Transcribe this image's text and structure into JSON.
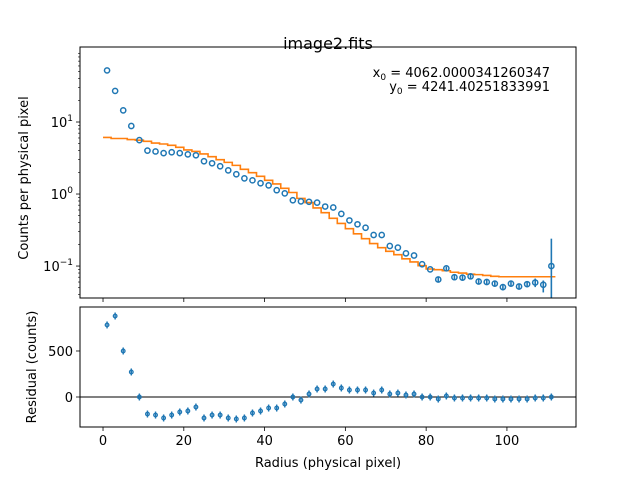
{
  "chart_data": [
    {
      "type": "scatter",
      "title": "image2.fits",
      "xlabel": "",
      "ylabel": "Counts per physical pixel",
      "yscale": "log",
      "xlim": [
        -5.7,
        117.1
      ],
      "ylim": [
        0.036,
        110
      ],
      "xticks": [
        0,
        20,
        40,
        60,
        80,
        100
      ],
      "yticks": [
        {
          "base": "10",
          "exp": "1",
          "value": 10
        },
        {
          "base": "10",
          "exp": "0",
          "value": 1
        },
        {
          "base": "10",
          "exp": "−1",
          "value": 0.1
        }
      ],
      "annotations": [
        {
          "sym": "x",
          "sub": "0",
          "rest": " = 4062.0000341260347"
        },
        {
          "sym": "y",
          "sub": "0",
          "rest": " = 4241.40251833991"
        }
      ],
      "series": [
        {
          "kind": "data-points",
          "color": "#1f77b4",
          "x": [
            1,
            3,
            5,
            7,
            9,
            11,
            13,
            15,
            17,
            19,
            21,
            23,
            25,
            27,
            29,
            31,
            33,
            35,
            37,
            39,
            41,
            43,
            45,
            47,
            49,
            51,
            53,
            55,
            57,
            59,
            61,
            63,
            65,
            67,
            69,
            71,
            73,
            75,
            77,
            79,
            81,
            83,
            85,
            87,
            89,
            91,
            93,
            95,
            97,
            99,
            101,
            103,
            105,
            107,
            109,
            111
          ],
          "y": [
            52,
            27,
            14.5,
            8.8,
            5.6,
            4.0,
            3.9,
            3.7,
            3.8,
            3.7,
            3.55,
            3.45,
            2.85,
            2.67,
            2.43,
            2.13,
            1.88,
            1.65,
            1.55,
            1.41,
            1.32,
            1.13,
            1.02,
            0.82,
            0.79,
            0.78,
            0.76,
            0.67,
            0.65,
            0.53,
            0.43,
            0.38,
            0.34,
            0.27,
            0.27,
            0.19,
            0.18,
            0.15,
            0.14,
            0.106,
            0.09,
            0.065,
            0.093,
            0.07,
            0.069,
            0.072,
            0.061,
            0.06,
            0.057,
            0.051,
            0.057,
            0.052,
            0.056,
            0.059,
            0.055,
            0.1
          ],
          "yerr_low": [
            0,
            0,
            0,
            0,
            0,
            0,
            0,
            0,
            0,
            0,
            0,
            0,
            0,
            0,
            0,
            0,
            0,
            0,
            0,
            0,
            0,
            0,
            0,
            0,
            0,
            0,
            0,
            0,
            0,
            0,
            0,
            0,
            0,
            0,
            0,
            0,
            0,
            0,
            0,
            0,
            0,
            0.005,
            0.005,
            0.005,
            0.005,
            0.005,
            0.005,
            0.005,
            0.005,
            0.005,
            0.005,
            0.005,
            0.005,
            0.008,
            0.012,
            0.1
          ],
          "yerr_high": [
            0,
            0,
            0,
            0,
            0,
            0,
            0,
            0,
            0,
            0,
            0,
            0,
            0,
            0,
            0,
            0,
            0,
            0,
            0,
            0,
            0,
            0,
            0,
            0,
            0,
            0,
            0,
            0,
            0,
            0,
            0,
            0,
            0,
            0,
            0,
            0,
            0,
            0,
            0,
            0,
            0,
            0.005,
            0.005,
            0.005,
            0.005,
            0.005,
            0.005,
            0.005,
            0.005,
            0.005,
            0.005,
            0.005,
            0.005,
            0.008,
            0.008,
            0.14
          ]
        },
        {
          "kind": "model-step",
          "color": "#ff7f0e",
          "x": [
            1,
            3,
            5,
            7,
            9,
            11,
            13,
            15,
            17,
            19,
            21,
            23,
            25,
            27,
            29,
            31,
            33,
            35,
            37,
            39,
            41,
            43,
            45,
            47,
            49,
            51,
            53,
            55,
            57,
            59,
            61,
            63,
            65,
            67,
            69,
            71,
            73,
            75,
            77,
            79,
            81,
            83,
            85,
            87,
            89,
            91,
            93,
            95,
            97,
            99,
            101,
            103,
            105,
            107,
            109,
            111
          ],
          "y": [
            6.1,
            5.9,
            5.9,
            5.7,
            5.6,
            5.4,
            5.1,
            4.95,
            4.75,
            4.45,
            4.1,
            3.9,
            3.6,
            3.3,
            3.0,
            2.75,
            2.5,
            2.2,
            1.98,
            1.76,
            1.55,
            1.38,
            1.2,
            1.05,
            0.87,
            0.76,
            0.64,
            0.55,
            0.46,
            0.39,
            0.33,
            0.28,
            0.24,
            0.205,
            0.18,
            0.16,
            0.144,
            0.126,
            0.114,
            0.101,
            0.091,
            0.089,
            0.086,
            0.082,
            0.08,
            0.077,
            0.076,
            0.074,
            0.072,
            0.071,
            0.071,
            0.071,
            0.071,
            0.071,
            0.071,
            0.071
          ]
        }
      ]
    },
    {
      "type": "scatter",
      "title": "",
      "xlabel": "Radius (physical pixel)",
      "ylabel": "Residual (counts)",
      "xlim": [
        -5.7,
        117.1
      ],
      "ylim": [
        -326,
        978
      ],
      "xticks": [
        0,
        20,
        40,
        60,
        80,
        100
      ],
      "yticks": [
        0,
        500
      ],
      "zero_line": true,
      "series": [
        {
          "kind": "residuals",
          "color": "#1f77b4",
          "x": [
            1,
            3,
            5,
            7,
            9,
            11,
            13,
            15,
            17,
            19,
            21,
            23,
            25,
            27,
            29,
            31,
            33,
            35,
            37,
            39,
            41,
            43,
            45,
            47,
            49,
            51,
            53,
            55,
            57,
            59,
            61,
            63,
            65,
            67,
            69,
            71,
            73,
            75,
            77,
            79,
            81,
            83,
            85,
            87,
            89,
            91,
            93,
            95,
            97,
            99,
            101,
            103,
            105,
            107,
            109,
            111
          ],
          "y": [
            783,
            880,
            500,
            272,
            0,
            -185,
            -196,
            -228,
            -196,
            -163,
            -152,
            -109,
            -228,
            -196,
            -196,
            -228,
            -239,
            -228,
            -174,
            -152,
            -120,
            -120,
            -76,
            0,
            -33,
            33,
            87,
            87,
            141,
            98,
            76,
            76,
            76,
            43,
            76,
            33,
            43,
            22,
            33,
            0,
            0,
            -22,
            11,
            -11,
            -11,
            -11,
            -11,
            -11,
            -22,
            -22,
            -22,
            -22,
            -22,
            -11,
            -11,
            0
          ]
        }
      ]
    }
  ]
}
